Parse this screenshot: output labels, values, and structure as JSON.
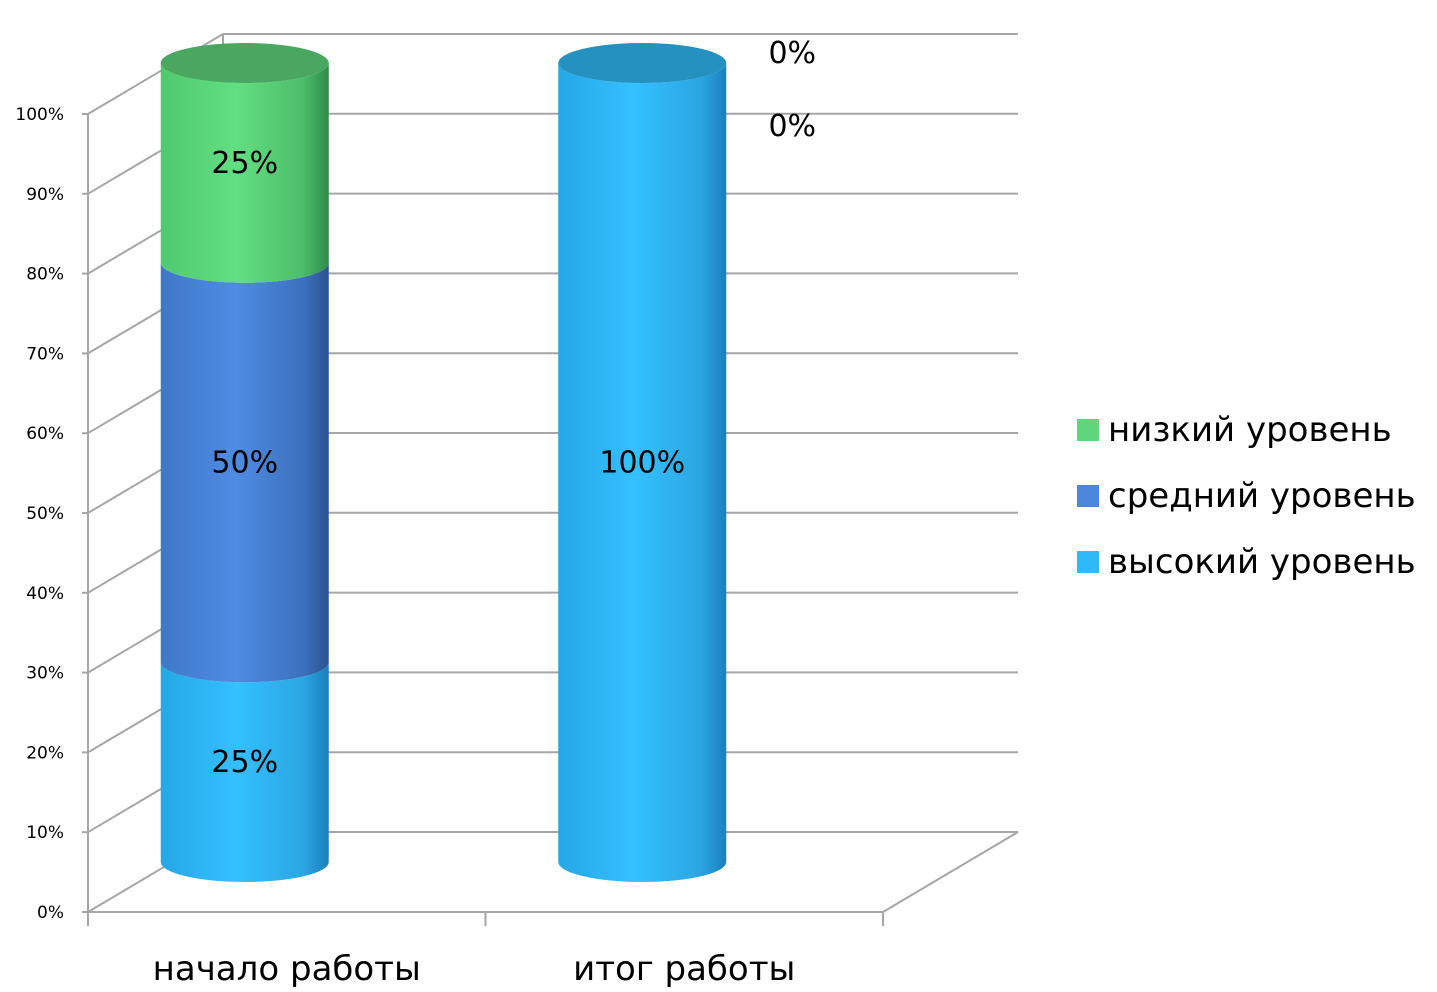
{
  "chart_data": {
    "type": "bar",
    "stacked": true,
    "percent_stacked": true,
    "three_d": "cylinder",
    "categories": [
      "начало работы",
      "итог работы"
    ],
    "series": [
      {
        "name": "высокий уровень",
        "color": "#2fbaf8",
        "values": [
          25,
          100
        ],
        "labels": [
          "25%",
          "100%"
        ]
      },
      {
        "name": "средний уровень",
        "color": "#4a86dc",
        "values": [
          50,
          0
        ],
        "labels": [
          "50%",
          "0%"
        ]
      },
      {
        "name": "низкий уровень",
        "color": "#5ed77c",
        "values": [
          25,
          0
        ],
        "labels": [
          "25%",
          "0%"
        ]
      }
    ],
    "y_ticks": [
      "0%",
      "10%",
      "20%",
      "30%",
      "40%",
      "50%",
      "60%",
      "70%",
      "80%",
      "90%",
      "100%"
    ],
    "ylim": [
      0,
      100
    ],
    "grid": true,
    "legend_position": "right"
  }
}
